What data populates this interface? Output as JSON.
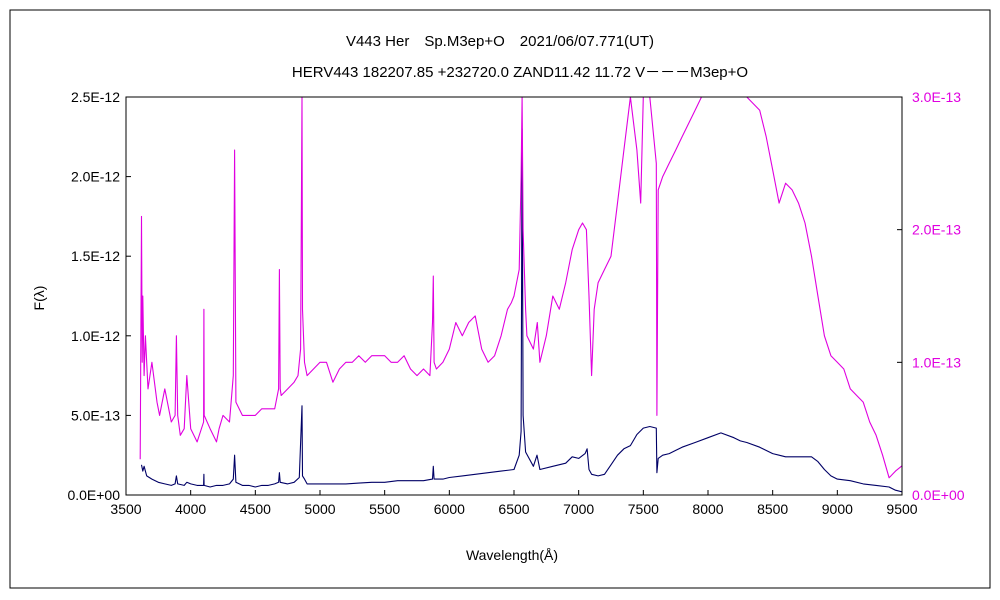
{
  "chart_data": {
    "type": "line",
    "title_line1": "V443 Her　Sp.M3ep+O　2021/06/07.771(UT)",
    "title_line2": "HERV443 182207.85 +232720.0 ZAND11.42 11.72 V－－－M3ep+O",
    "xlabel": "Wavelength(Å)",
    "ylabel": "F(λ)",
    "xlim": [
      3500,
      9500
    ],
    "ylim_left": [
      0,
      2.5e-12
    ],
    "ylim_right": [
      0,
      3e-13
    ],
    "x_ticks": [
      "3500",
      "4000",
      "4500",
      "5000",
      "5500",
      "6000",
      "6500",
      "7000",
      "7500",
      "8000",
      "8500",
      "9000",
      "9500"
    ],
    "y_left_ticks": [
      "0.0E+00",
      "5.0E-13",
      "1.0E-12",
      "1.5E-12",
      "2.0E-12",
      "2.5E-12"
    ],
    "y_right_ticks": [
      "0.0E+00",
      "1.0E-13",
      "2.0E-13",
      "3.0E-13"
    ],
    "grid": false,
    "colors": {
      "left_series": "#000066",
      "right_series": "#e000e0",
      "frame": "#000000"
    },
    "series": [
      {
        "axis": "left",
        "values_unit": "flux",
        "x": [
          3620,
          3630,
          3640,
          3660,
          3700,
          3750,
          3800,
          3850,
          3880,
          3890,
          3900,
          3950,
          3970,
          4000,
          4050,
          4100,
          4102,
          4104,
          4150,
          4200,
          4250,
          4300,
          4330,
          4340,
          4350,
          4400,
          4450,
          4500,
          4550,
          4600,
          4650,
          4680,
          4686,
          4692,
          4750,
          4800,
          4840,
          4861,
          4865,
          4880,
          4900,
          5000,
          5100,
          5200,
          5300,
          5400,
          5500,
          5600,
          5700,
          5800,
          5870,
          5876,
          5882,
          5950,
          6000,
          6100,
          6200,
          6300,
          6400,
          6500,
          6540,
          6555,
          6563,
          6570,
          6590,
          6650,
          6678,
          6700,
          6800,
          6900,
          6950,
          7000,
          7050,
          7065,
          7080,
          7100,
          7150,
          7200,
          7250,
          7300,
          7350,
          7400,
          7450,
          7500,
          7550,
          7600,
          7605,
          7615,
          7650,
          7700,
          7750,
          7800,
          7900,
          8000,
          8100,
          8200,
          8250,
          8300,
          8400,
          8500,
          8550,
          8600,
          8700,
          8800,
          8850,
          8900,
          8950,
          9000,
          9100,
          9200,
          9300,
          9400,
          9450,
          9500
        ],
        "values": [
          1.9e-13,
          1.5e-13,
          1.8e-13,
          1.2e-13,
          1e-13,
          8e-14,
          7e-14,
          6e-14,
          7e-14,
          1.2e-13,
          7e-14,
          6e-14,
          8e-14,
          7e-14,
          6e-14,
          6e-14,
          1.3e-13,
          6e-14,
          5e-14,
          6e-14,
          6e-14,
          7e-14,
          1e-13,
          2.5e-13,
          8e-14,
          6e-14,
          6e-14,
          5e-14,
          6e-14,
          6e-14,
          7e-14,
          8e-14,
          1.4e-13,
          8e-14,
          7e-14,
          8e-14,
          1.1e-13,
          5.6e-13,
          1.2e-13,
          1e-13,
          7e-14,
          7e-14,
          7e-14,
          7e-14,
          7.5e-14,
          8e-14,
          8e-14,
          9e-14,
          9e-14,
          9e-14,
          1e-13,
          1.8e-13,
          1e-13,
          1e-13,
          1.1e-13,
          1.2e-13,
          1.3e-13,
          1.4e-13,
          1.5e-13,
          1.6e-13,
          2.5e-13,
          4e-13,
          2.3e-12,
          5e-13,
          2.7e-13,
          1.8e-13,
          2.5e-13,
          1.6e-13,
          1.8e-13,
          2e-13,
          2.4e-13,
          2.3e-13,
          2.6e-13,
          2.9e-13,
          1.6e-13,
          1.3e-13,
          1.2e-13,
          1.3e-13,
          1.9e-13,
          2.5e-13,
          2.9e-13,
          3.1e-13,
          3.8e-13,
          4.2e-13,
          4.3e-13,
          4.2e-13,
          1.4e-13,
          2.3e-13,
          2.5e-13,
          2.6e-13,
          2.8e-13,
          3e-13,
          3.3e-13,
          3.6e-13,
          3.9e-13,
          3.6e-13,
          3.4e-13,
          3.3e-13,
          3e-13,
          2.6e-13,
          2.5e-13,
          2.4e-13,
          2.4e-13,
          2.4e-13,
          2.1e-13,
          1.6e-13,
          1.2e-13,
          1e-13,
          9e-14,
          7e-14,
          6e-14,
          5e-14,
          3e-14,
          2e-14
        ]
      },
      {
        "axis": "right",
        "values_unit": "flux",
        "x": [
          3610,
          3620,
          3625,
          3630,
          3640,
          3650,
          3670,
          3700,
          3740,
          3760,
          3800,
          3850,
          3880,
          3890,
          3900,
          3920,
          3950,
          3970,
          4000,
          4050,
          4100,
          4102,
          4105,
          4150,
          4200,
          4220,
          4250,
          4300,
          4330,
          4340,
          4350,
          4400,
          4450,
          4500,
          4550,
          4600,
          4650,
          4680,
          4686,
          4692,
          4700,
          4750,
          4800,
          4830,
          4850,
          4861,
          4865,
          4880,
          4900,
          4950,
          5000,
          5050,
          5100,
          5150,
          5200,
          5250,
          5300,
          5350,
          5400,
          5450,
          5500,
          5550,
          5600,
          5650,
          5700,
          5750,
          5800,
          5850,
          5870,
          5876,
          5882,
          5900,
          5950,
          6000,
          6050,
          6100,
          6150,
          6200,
          6250,
          6300,
          6350,
          6400,
          6450,
          6480,
          6500,
          6520,
          6540,
          6555,
          6563,
          6570,
          6590,
          6600,
          6650,
          6680,
          6700,
          6750,
          6800,
          6850,
          6900,
          6950,
          7000,
          7030,
          7060,
          7080,
          7100,
          7120,
          7150,
          7200,
          7250,
          7300,
          7350,
          7400,
          7450,
          7480,
          7500,
          7550,
          7580,
          7600,
          7605,
          7615,
          7650,
          7700,
          7750,
          7800,
          7850,
          7900,
          7950,
          8000,
          8100,
          8200,
          8250,
          8300,
          8400,
          8450,
          8500,
          8550,
          8600,
          8650,
          8700,
          8750,
          8800,
          8850,
          8900,
          8950,
          9000,
          9050,
          9100,
          9150,
          9200,
          9250,
          9300,
          9350,
          9400,
          9450,
          9500
        ],
        "values": [
          2.7e-14,
          2.1e-13,
          1e-13,
          1.5e-13,
          9e-14,
          1.2e-13,
          8e-14,
          1e-13,
          7e-14,
          6e-14,
          8e-14,
          5.5e-14,
          6e-14,
          1.2e-13,
          6e-14,
          4.5e-14,
          5e-14,
          9e-14,
          5e-14,
          4e-14,
          5.5e-14,
          1.4e-13,
          6e-14,
          5e-14,
          4e-14,
          5e-14,
          6e-14,
          5.5e-14,
          9e-14,
          2.6e-13,
          7e-14,
          6e-14,
          6e-14,
          6e-14,
          6.5e-14,
          6.5e-14,
          6.5e-14,
          8e-14,
          1.7e-13,
          8e-14,
          7.5e-14,
          8e-14,
          8.5e-14,
          9e-14,
          1.1e-13,
          3e-13,
          1.4e-13,
          1e-13,
          9e-14,
          9.5e-14,
          1e-13,
          1e-13,
          8.5e-14,
          9.5e-14,
          1e-13,
          1e-13,
          1.05e-13,
          1e-13,
          1.05e-13,
          1.05e-13,
          1.05e-13,
          1e-13,
          1e-13,
          1.05e-13,
          9.5e-14,
          9e-14,
          9.5e-14,
          9e-14,
          1.3e-13,
          1.65e-13,
          1e-13,
          9.5e-14,
          1e-13,
          1.1e-13,
          1.3e-13,
          1.2e-13,
          1.3e-13,
          1.35e-13,
          1.1e-13,
          1e-13,
          1.05e-13,
          1.2e-13,
          1.4e-13,
          1.45e-13,
          1.5e-13,
          1.6e-13,
          1.7e-13,
          2.4e-13,
          3e-13,
          2e-13,
          1.4e-13,
          1.2e-13,
          1.1e-13,
          1.3e-13,
          1e-13,
          1.2e-13,
          1.5e-13,
          1.4e-13,
          1.6e-13,
          1.85e-13,
          2e-13,
          2.05e-13,
          2e-13,
          1.5e-13,
          9e-14,
          1.4e-13,
          1.6e-13,
          1.7e-13,
          1.8e-13,
          2.2e-13,
          2.6e-13,
          3e-13,
          2.6e-13,
          2.2e-13,
          3e-13,
          3e-13,
          2.7e-13,
          2.5e-13,
          6e-14,
          2.3e-13,
          2.4e-13,
          2.5e-13,
          2.6e-13,
          2.7e-13,
          2.8e-13,
          2.9e-13,
          3e-13,
          3e-13,
          3e-13,
          3e-13,
          3e-13,
          3e-13,
          2.9e-13,
          2.7e-13,
          2.45e-13,
          2.2e-13,
          2.35e-13,
          2.3e-13,
          2.2e-13,
          2.05e-13,
          1.8e-13,
          1.5e-13,
          1.2e-13,
          1.05e-13,
          1e-13,
          9.5e-14,
          8e-14,
          7.5e-14,
          7e-14,
          5.5e-14,
          4.5e-14,
          3e-14,
          1.3e-14,
          1.8e-14,
          2.2e-14
        ]
      }
    ]
  }
}
